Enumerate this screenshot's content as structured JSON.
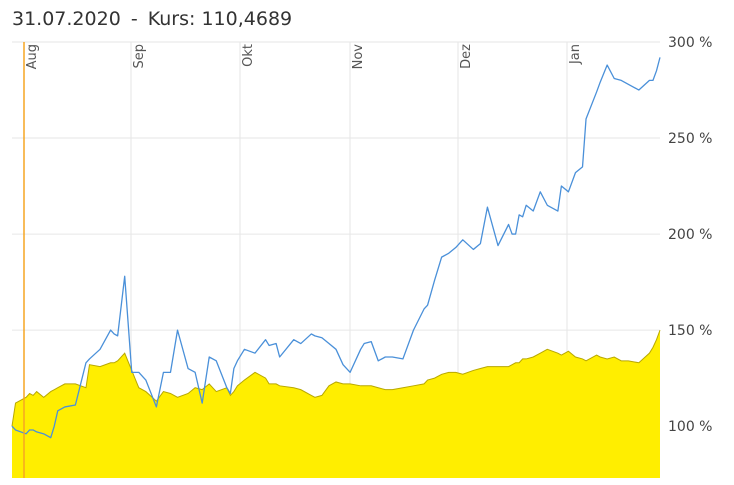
{
  "header": {
    "date": "31.07.2020",
    "separator": "-",
    "rate_label": "Kurs: 110,4689"
  },
  "chart_data": {
    "type": "area",
    "title": "",
    "xlabel": "",
    "ylabel": "",
    "x_tick_labels": [
      "Aug",
      "Sep",
      "Okt",
      "Nov",
      "Dez",
      "Jan"
    ],
    "y_tick_labels": [
      "100 %",
      "150 %",
      "200 %",
      "250 %",
      "300 %"
    ],
    "ylim": [
      73,
      300
    ],
    "grid": true,
    "legend": "none",
    "colors": {
      "line_series": "#4a90d9",
      "area_fill": "#ffee00",
      "area_stroke": "#b8a800",
      "marker_line": "#f5a623",
      "grid": "#e6e6e6"
    },
    "series": [
      {
        "type": "line",
        "x": [
          0,
          1,
          4,
          5,
          6,
          7,
          9,
          11,
          12,
          13,
          15,
          18,
          21,
          22,
          25,
          28,
          29,
          30,
          32,
          34,
          36,
          38,
          41,
          43,
          45,
          47,
          50,
          52,
          54,
          56,
          58,
          61,
          62,
          63,
          64,
          66,
          69,
          72,
          73,
          75,
          76,
          80,
          82,
          85,
          86,
          88,
          90,
          92,
          94,
          96,
          99,
          100,
          102,
          104,
          106,
          108,
          111,
          114,
          117,
          118,
          120,
          122,
          124,
          126,
          128,
          131,
          133,
          135,
          138,
          141,
          142,
          143,
          144,
          145,
          146,
          148,
          150,
          152,
          155,
          156,
          158,
          160,
          162,
          163,
          166,
          167,
          169,
          171,
          173,
          175,
          178,
          181,
          182,
          183,
          184
        ],
        "values": [
          100,
          98,
          96,
          98,
          98,
          97,
          96,
          94,
          100,
          108,
          110,
          111,
          133,
          135,
          140,
          150,
          148,
          147,
          178,
          128,
          128,
          124,
          110,
          128,
          128,
          150,
          130,
          128,
          112,
          136,
          134,
          120,
          117,
          130,
          134,
          140,
          138,
          145,
          142,
          143,
          136,
          145,
          143,
          148,
          147,
          146,
          143,
          140,
          132,
          128,
          140,
          143,
          144,
          134,
          136,
          136,
          135,
          150,
          161,
          163,
          176,
          188,
          190,
          193,
          197,
          192,
          195,
          214,
          194,
          205,
          200,
          200,
          210,
          209,
          215,
          212,
          222,
          215,
          212,
          225,
          222,
          232,
          235,
          260,
          274,
          279,
          288,
          281,
          280,
          278,
          275,
          280,
          280,
          285,
          292
        ]
      },
      {
        "type": "area",
        "x": [
          0,
          1,
          4,
          5,
          6,
          7,
          9,
          11,
          12,
          13,
          15,
          18,
          21,
          22,
          25,
          28,
          29,
          30,
          32,
          34,
          36,
          38,
          41,
          43,
          45,
          47,
          50,
          52,
          54,
          56,
          58,
          61,
          62,
          63,
          64,
          66,
          69,
          72,
          73,
          75,
          76,
          80,
          82,
          85,
          86,
          88,
          90,
          92,
          94,
          96,
          99,
          100,
          102,
          104,
          106,
          108,
          111,
          114,
          117,
          118,
          120,
          122,
          124,
          126,
          128,
          131,
          133,
          135,
          138,
          141,
          142,
          143,
          144,
          145,
          146,
          148,
          150,
          152,
          155,
          156,
          158,
          160,
          162,
          163,
          166,
          167,
          169,
          171,
          173,
          175,
          178,
          181,
          182,
          183,
          184
        ],
        "values": [
          100,
          112,
          115,
          117,
          116,
          118,
          115,
          118,
          119,
          120,
          122,
          122,
          120,
          132,
          131,
          133,
          133,
          134,
          138,
          129,
          120,
          118,
          113,
          118,
          117,
          115,
          117,
          120,
          119,
          122,
          118,
          120,
          116,
          118,
          121,
          124,
          128,
          125,
          122,
          122,
          121,
          120,
          119,
          116,
          115,
          116,
          121,
          123,
          122,
          122,
          121,
          121,
          121,
          120,
          119,
          119,
          120,
          121,
          122,
          124,
          125,
          127,
          128,
          128,
          127,
          129,
          130,
          131,
          131,
          131,
          132,
          133,
          133,
          135,
          135,
          136,
          138,
          140,
          138,
          137,
          139,
          136,
          135,
          134,
          137,
          136,
          135,
          136,
          134,
          134,
          133,
          138,
          141,
          145,
          150
        ]
      }
    ]
  }
}
